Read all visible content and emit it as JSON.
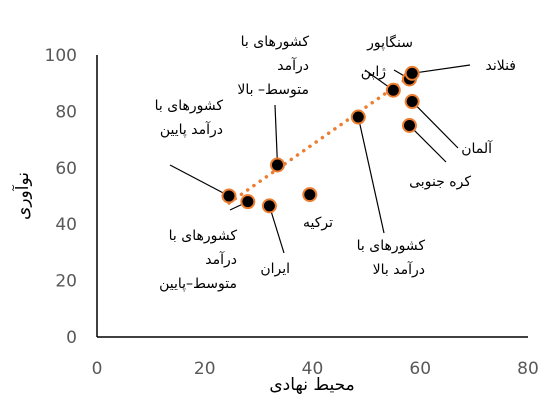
{
  "chart_data": {
    "type": "scatter",
    "xlabel": "محیط نهادی",
    "ylabel": "نوآوری",
    "xlim": [
      0,
      80
    ],
    "ylim": [
      0,
      100
    ],
    "x_ticks": [
      "0",
      "20",
      "40",
      "60",
      "80"
    ],
    "y_ticks": [
      "0",
      "20",
      "40",
      "60",
      "80",
      "100"
    ],
    "grid": false,
    "marker_color": "#ED7D31",
    "trendline": {
      "style": "dotted",
      "color": "#ED7D31",
      "from": [
        24.5,
        47.5
      ],
      "to": [
        58.5,
        93
      ]
    },
    "points": [
      {
        "x": 24.5,
        "y": 50
      },
      {
        "x": 28.0,
        "y": 48
      },
      {
        "x": 32.0,
        "y": 46.5
      },
      {
        "x": 33.5,
        "y": 61
      },
      {
        "x": 39.5,
        "y": 50.5
      },
      {
        "x": 48.5,
        "y": 78
      },
      {
        "x": 55.0,
        "y": 87.5
      },
      {
        "x": 58.0,
        "y": 91.5
      },
      {
        "x": 58.5,
        "y": 93.5
      },
      {
        "x": 58.5,
        "y": 83.5
      },
      {
        "x": 58.0,
        "y": 75
      }
    ],
    "annotations": [
      {
        "lines": [
          "کشورهای با",
          "درآمد پایین"
        ]
      },
      {
        "lines": [
          "کشورهای با",
          "درآمد",
          "متوسط–پایین"
        ]
      },
      {
        "lines": [
          "ایران"
        ]
      },
      {
        "lines": [
          "کشورهای با",
          "درآمد",
          "متوسط– بالا"
        ]
      },
      {
        "lines": [
          "ترکیه"
        ]
      },
      {
        "lines": [
          "کشورهای با",
          "درآمد بالا"
        ]
      },
      {
        "lines": [
          "سنگاپور"
        ]
      },
      {
        "lines": [
          "ژاپن"
        ]
      },
      {
        "lines": [
          "فنلاند"
        ]
      },
      {
        "lines": [
          "آلمان"
        ]
      },
      {
        "lines": [
          "کره جنوبی"
        ]
      }
    ]
  }
}
